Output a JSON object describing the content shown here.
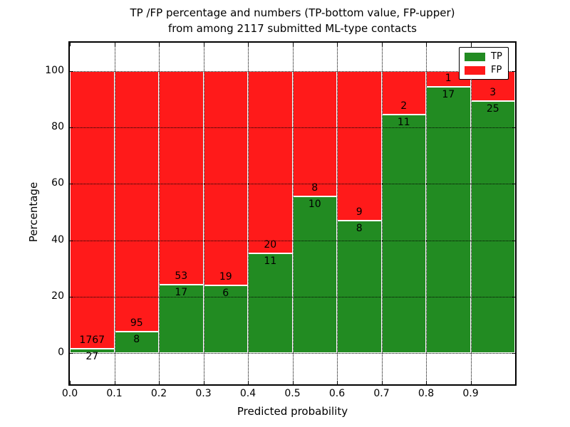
{
  "title": {
    "line1": "TP /FP percentage and numbers (TP-bottom value, FP-upper)",
    "line2": "from among 2117 submitted ML-type contacts"
  },
  "axes": {
    "xlabel": "Predicted probability",
    "ylabel": "Percentage",
    "x_tick_labels": [
      "0.0",
      "0.1",
      "0.2",
      "0.3",
      "0.4",
      "0.5",
      "0.6",
      "0.7",
      "0.8",
      "0.9"
    ],
    "y_tick_labels": [
      "0",
      "20",
      "40",
      "60",
      "80",
      "100"
    ]
  },
  "legend": {
    "position": "upper right",
    "items": [
      {
        "label": "TP",
        "color": "#228b22"
      },
      {
        "label": "FP",
        "color": "#ff1a1a"
      }
    ]
  },
  "colors": {
    "tp": "#228b22",
    "fp": "#ff1a1a",
    "bar_edge": "#ffffff",
    "grid": "#000000",
    "frame": "#000000",
    "background": "#ffffff",
    "text": "#000000"
  },
  "chart_data": {
    "type": "bar",
    "stacked": true,
    "normalized": "percent",
    "title": "TP /FP percentage and numbers (TP-bottom value, FP-upper) from among 2117 submitted ML-type contacts",
    "xlabel": "Predicted probability",
    "ylabel": "Percentage",
    "total_contacts": 2117,
    "bins": [
      {
        "range": [
          0.0,
          0.1
        ],
        "tp": 27,
        "fp": 1767
      },
      {
        "range": [
          0.1,
          0.2
        ],
        "tp": 8,
        "fp": 95
      },
      {
        "range": [
          0.2,
          0.3
        ],
        "tp": 17,
        "fp": 53
      },
      {
        "range": [
          0.3,
          0.4
        ],
        "tp": 6,
        "fp": 19
      },
      {
        "range": [
          0.4,
          0.5
        ],
        "tp": 11,
        "fp": 20
      },
      {
        "range": [
          0.5,
          0.6
        ],
        "tp": 10,
        "fp": 8
      },
      {
        "range": [
          0.6,
          0.7
        ],
        "tp": 8,
        "fp": 9
      },
      {
        "range": [
          0.7,
          0.8
        ],
        "tp": 11,
        "fp": 2
      },
      {
        "range": [
          0.8,
          0.9
        ],
        "tp": 17,
        "fp": 1
      },
      {
        "range": [
          0.9,
          1.0
        ],
        "tp": 25,
        "fp": 3
      }
    ],
    "series": [
      {
        "name": "TP",
        "counts": [
          27,
          8,
          17,
          6,
          11,
          10,
          8,
          11,
          17,
          25
        ]
      },
      {
        "name": "FP",
        "counts": [
          1767,
          95,
          53,
          19,
          20,
          8,
          9,
          2,
          1,
          3
        ]
      }
    ],
    "x_ticks": [
      0.0,
      0.1,
      0.2,
      0.3,
      0.4,
      0.5,
      0.6,
      0.7,
      0.8,
      0.9
    ],
    "y_ticks": [
      0,
      20,
      40,
      60,
      80,
      100
    ],
    "xlim": [
      0.0,
      1.0
    ],
    "ylim": [
      -11,
      110
    ],
    "grid": true,
    "grid_style": "dotted",
    "legend_position": "upper right"
  }
}
